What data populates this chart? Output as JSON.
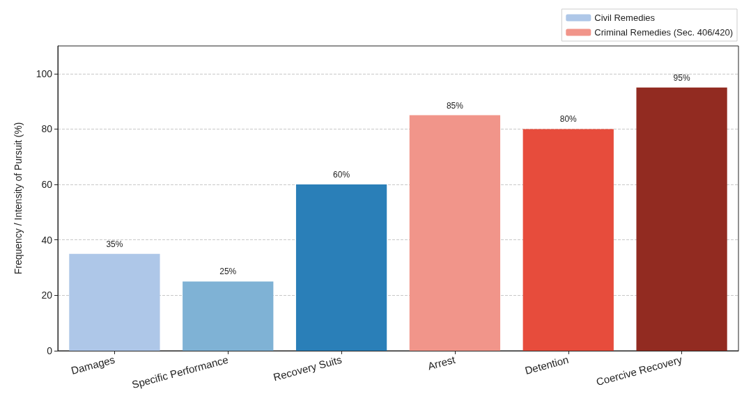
{
  "chart_data": {
    "type": "bar",
    "ylabel": "Frequency / Intensity of Pursuit (%)",
    "categories": [
      "Damages",
      "Specific Performance",
      "Recovery Suits",
      "Arrest",
      "Detention",
      "Coercive Recovery"
    ],
    "series": [
      {
        "name": "Civil Remedies",
        "color": "#aec7e8",
        "colors": [
          "#aec7e8",
          "#7fb2d5",
          "#2a7fb8",
          null,
          null,
          null
        ],
        "values": [
          35,
          25,
          60,
          null,
          null,
          null
        ],
        "value_labels": [
          "35%",
          "25%",
          "60%",
          null,
          null,
          null
        ]
      },
      {
        "name": "Criminal Remedies (Sec. 406/420)",
        "color": "#f1958a",
        "colors": [
          null,
          null,
          null,
          "#f1958a",
          "#e74c3c",
          "#922b21"
        ],
        "values": [
          null,
          null,
          null,
          85,
          80,
          95
        ],
        "value_labels": [
          null,
          null,
          null,
          "85%",
          "80%",
          "95%"
        ]
      }
    ],
    "ylim": [
      0,
      110
    ],
    "yticks": [
      0,
      20,
      40,
      60,
      80,
      100
    ],
    "grid": "y",
    "legend": "top right"
  }
}
